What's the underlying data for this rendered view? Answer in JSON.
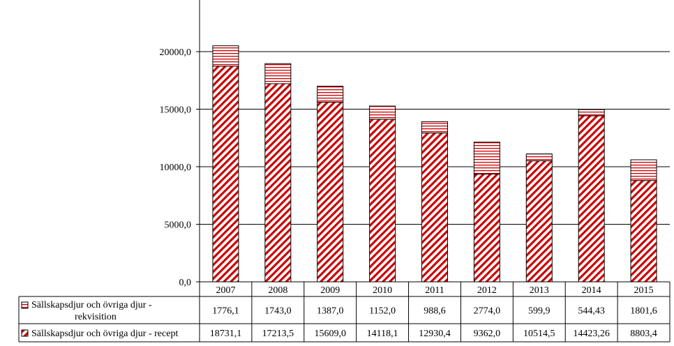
{
  "chart_data": {
    "type": "bar",
    "stacked": true,
    "categories": [
      "2007",
      "2008",
      "2009",
      "2010",
      "2011",
      "2012",
      "2013",
      "2014",
      "2015"
    ],
    "series": [
      {
        "name": "Sällskapsdjur och övriga djur - recept",
        "values": [
          18731.1,
          17213.5,
          15609.0,
          14118.1,
          12930.4,
          9362.0,
          10514.5,
          14423.26,
          8803.4
        ],
        "labels": [
          "18731,1",
          "17213,5",
          "15609,0",
          "14118,1",
          "12930,4",
          "9362,0",
          "10514,5",
          "14423,26",
          "8803,4"
        ],
        "pattern": "diagonal-hatch",
        "color": "#cc0000"
      },
      {
        "name_lines": [
          "Sällskapsdjur och övriga djur -",
          "rekvisition"
        ],
        "values": [
          1776.1,
          1743.0,
          1387.0,
          1152.0,
          988.6,
          2774.0,
          599.9,
          544.43,
          1801.6
        ],
        "labels": [
          "1776,1",
          "1743,0",
          "1387,0",
          "1152,0",
          "988,6",
          "2774,0",
          "599,9",
          "544,43",
          "1801,6"
        ],
        "pattern": "horizontal-hatch",
        "color": "#cc0000"
      }
    ],
    "yticks": [
      "0,0",
      "5000,0",
      "10000,0",
      "15000,0",
      "20000,0"
    ],
    "ylim": [
      0,
      24500
    ],
    "grid": true,
    "legend": "data-table"
  }
}
